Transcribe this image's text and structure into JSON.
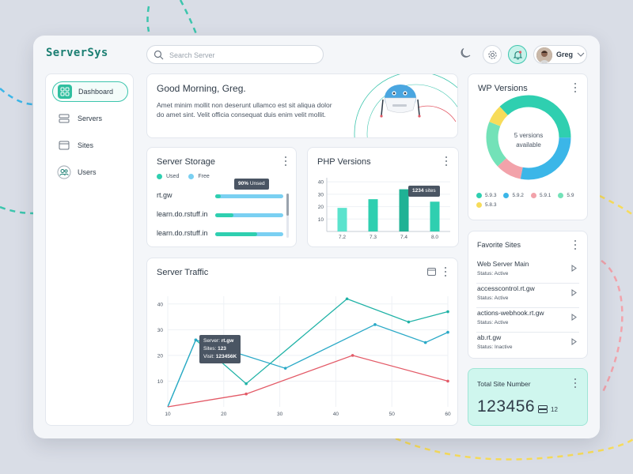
{
  "app": {
    "logo": "ServerSys"
  },
  "header": {
    "search_placeholder": "Search Server",
    "user_name": "Greg"
  },
  "sidebar": {
    "items": [
      {
        "label": "Dashboard"
      },
      {
        "label": "Servers"
      },
      {
        "label": "Sites"
      },
      {
        "label": "Users"
      }
    ]
  },
  "greeting": {
    "title": "Good Morning, Greg.",
    "text": "Amet minim mollit non deserunt ullamco est sit aliqua dolor do amet sint. Velit officia consequat duis enim velit mollit."
  },
  "storage": {
    "title": "Server Storage",
    "legend_used": "Used",
    "legend_free": "Free",
    "tooltip_value": "90%",
    "tooltip_label": "Unsed",
    "rows": [
      {
        "name": "rt.gw",
        "used": 0.08
      },
      {
        "name": "learn.do.rstuff.in",
        "used": 0.27
      },
      {
        "name": "learn.do.rstuff.in",
        "used": 0.62
      }
    ],
    "colors": {
      "used": "#2fcfb0",
      "free": "#7ad0f2"
    }
  },
  "chart_data": [
    {
      "type": "bar",
      "title": "PHP Versions",
      "categories": [
        "7.2",
        "7.3",
        "7.4",
        "8.0"
      ],
      "values": [
        19,
        26,
        34,
        24
      ],
      "yticks": [
        10,
        20,
        30,
        40
      ],
      "ylim": [
        0,
        42
      ],
      "tooltip": {
        "value": "1234",
        "label": "sites"
      },
      "colors": [
        "#5be3cd",
        "#2fcfb0",
        "#1fb295",
        "#2fcfb0"
      ]
    },
    {
      "type": "line",
      "title": "Server Traffic",
      "xticks": [
        10,
        20,
        30,
        40,
        50,
        60
      ],
      "yticks": [
        10,
        20,
        30,
        40
      ],
      "xlim": [
        10,
        60
      ],
      "ylim": [
        0,
        43
      ],
      "series": [
        {
          "color": "#1fb2a6",
          "points": [
            [
              10,
              0
            ],
            [
              15,
              26
            ],
            [
              24,
              9
            ],
            [
              42,
              42
            ],
            [
              53,
              33
            ],
            [
              60,
              37
            ]
          ]
        },
        {
          "color": "#2aa9c7",
          "points": [
            [
              10,
              0
            ],
            [
              15,
              26
            ],
            [
              31,
              15
            ],
            [
              47,
              32
            ],
            [
              56,
              25
            ],
            [
              60,
              29
            ]
          ]
        },
        {
          "color": "#e35a67",
          "points": [
            [
              10,
              0
            ],
            [
              24,
              5
            ],
            [
              43,
              20
            ],
            [
              60,
              10
            ]
          ]
        }
      ],
      "tooltip": {
        "server_label": "Server:",
        "server": "rt.gw",
        "sites_label": "Sites:",
        "sites": "123",
        "visit_label": "Visit:",
        "visit": "123456K"
      }
    },
    {
      "type": "pie",
      "title": "WP Versions",
      "center_line1": "5 versions",
      "center_line2": "available",
      "slices": [
        {
          "name": "5.9.3",
          "value": 37,
          "color": "#2fcfb0"
        },
        {
          "name": "5.9.2",
          "value": 28,
          "color": "#3bb6e8"
        },
        {
          "name": "5.9.1",
          "value": 10,
          "color": "#f2a2aa"
        },
        {
          "name": "5.9",
          "value": 18,
          "color": "#73e2b8"
        },
        {
          "name": "5.8.3",
          "value": 7,
          "color": "#f7dc5a"
        }
      ]
    }
  ],
  "favorites": {
    "title": "Favorite Sites",
    "items": [
      {
        "name": "Web Server Main",
        "status": "Status: Active"
      },
      {
        "name": "accesscontrol.rt.gw",
        "status": "Status: Active"
      },
      {
        "name": "actions-webhook.rt.gw",
        "status": "Status: Active"
      },
      {
        "name": "ab.rt.gw",
        "status": "Status: Inactive"
      }
    ]
  },
  "total": {
    "title": "Total Site Number",
    "value": "123456",
    "servers": "12"
  }
}
